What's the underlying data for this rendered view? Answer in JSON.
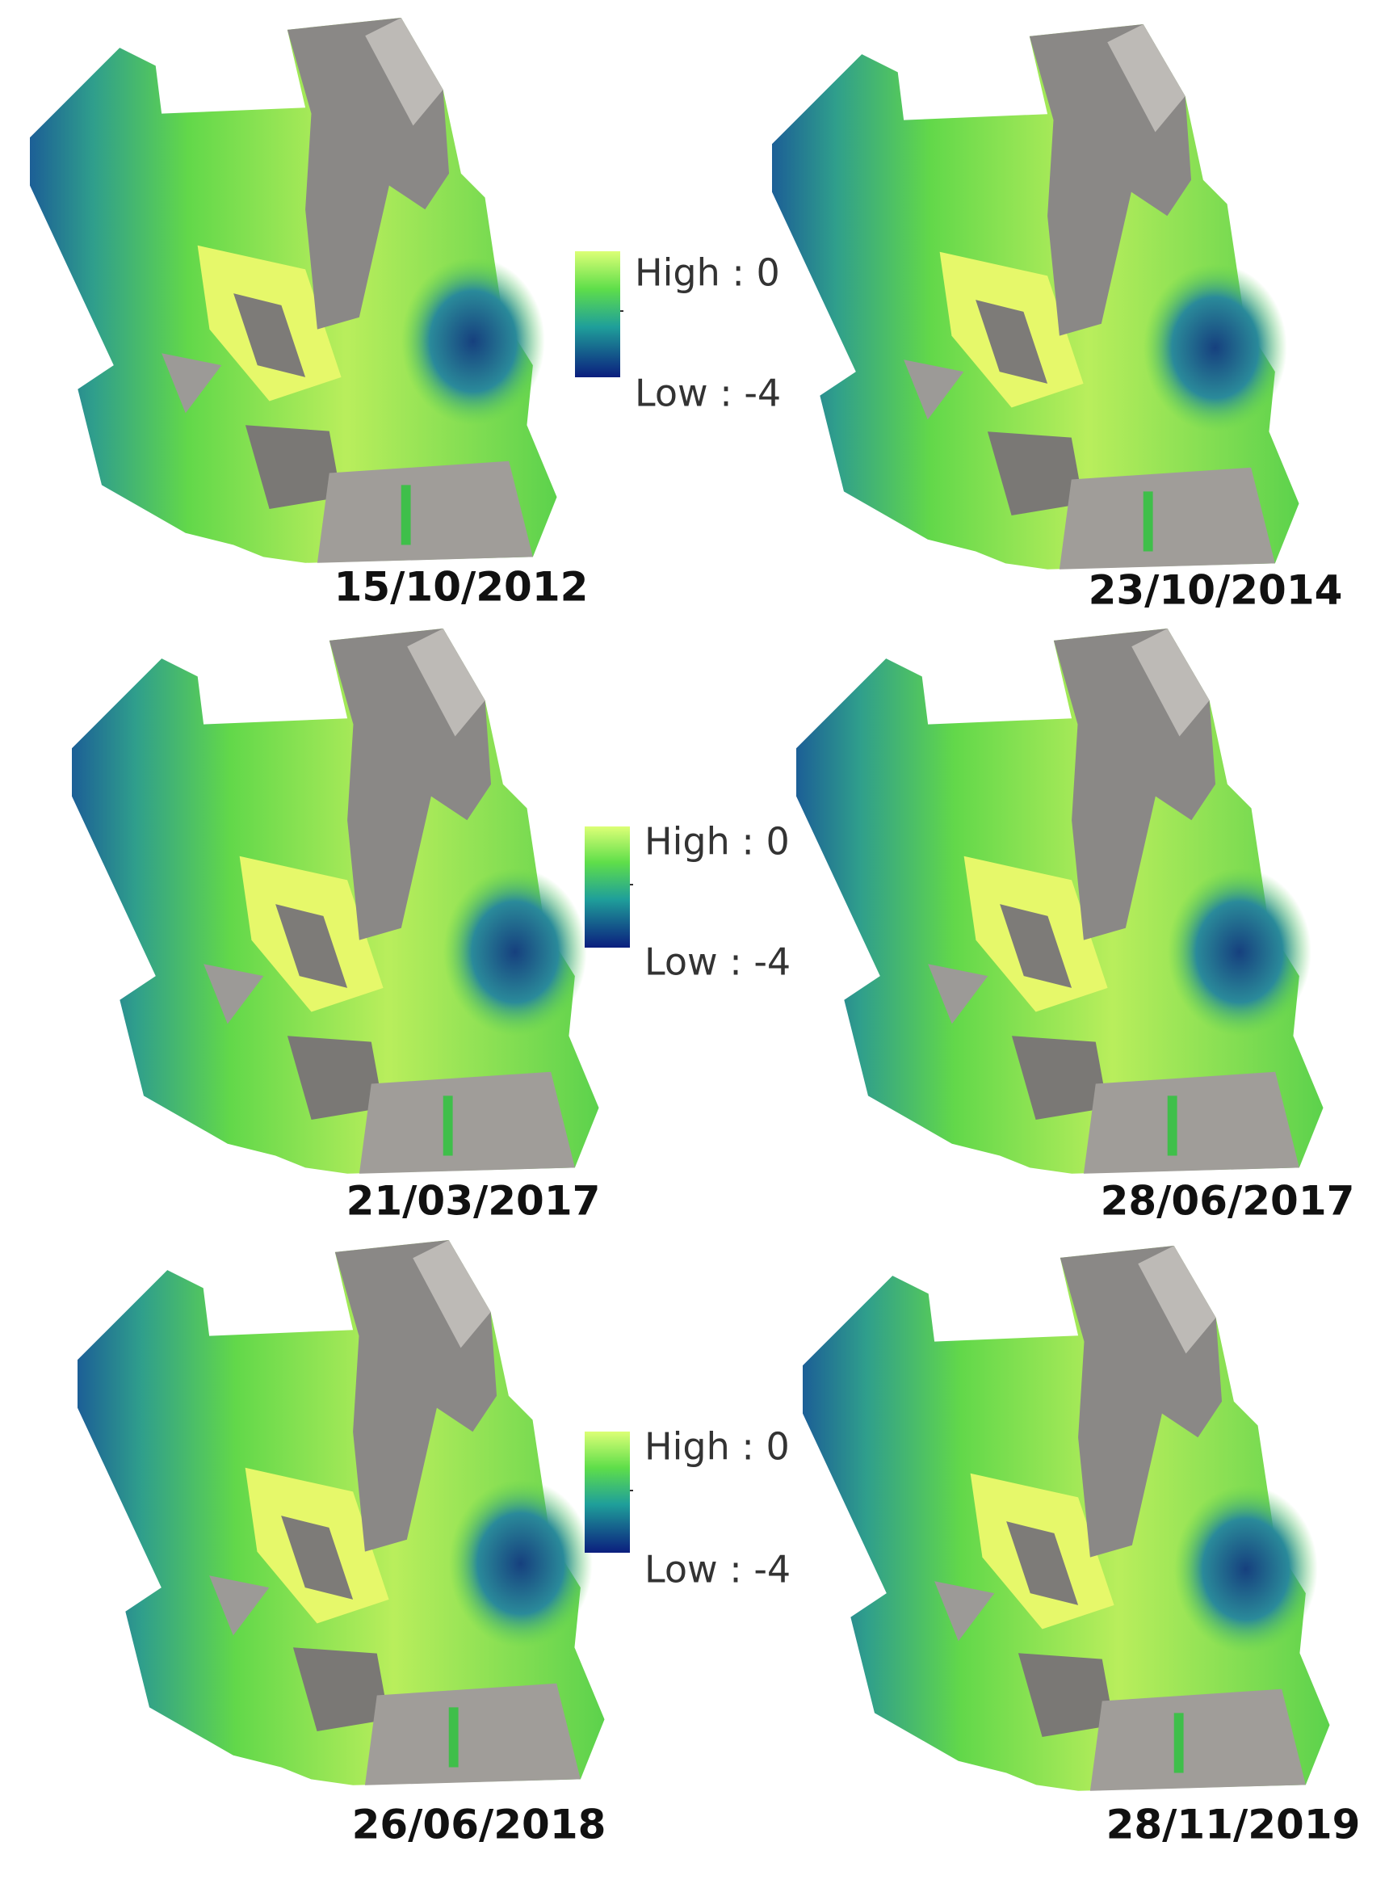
{
  "panels": [
    {
      "date": "15/10/2012"
    },
    {
      "date": "23/10/2014"
    },
    {
      "date": "21/03/2017"
    },
    {
      "date": "28/06/2017"
    },
    {
      "date": "26/06/2018"
    },
    {
      "date": "28/11/2019"
    }
  ],
  "legends": [
    {
      "high": "High : 0",
      "low": "Low : -4"
    },
    {
      "high": "High : 0",
      "low": "Low : -4"
    },
    {
      "high": "High : 0",
      "low": "Low : -4"
    }
  ]
}
